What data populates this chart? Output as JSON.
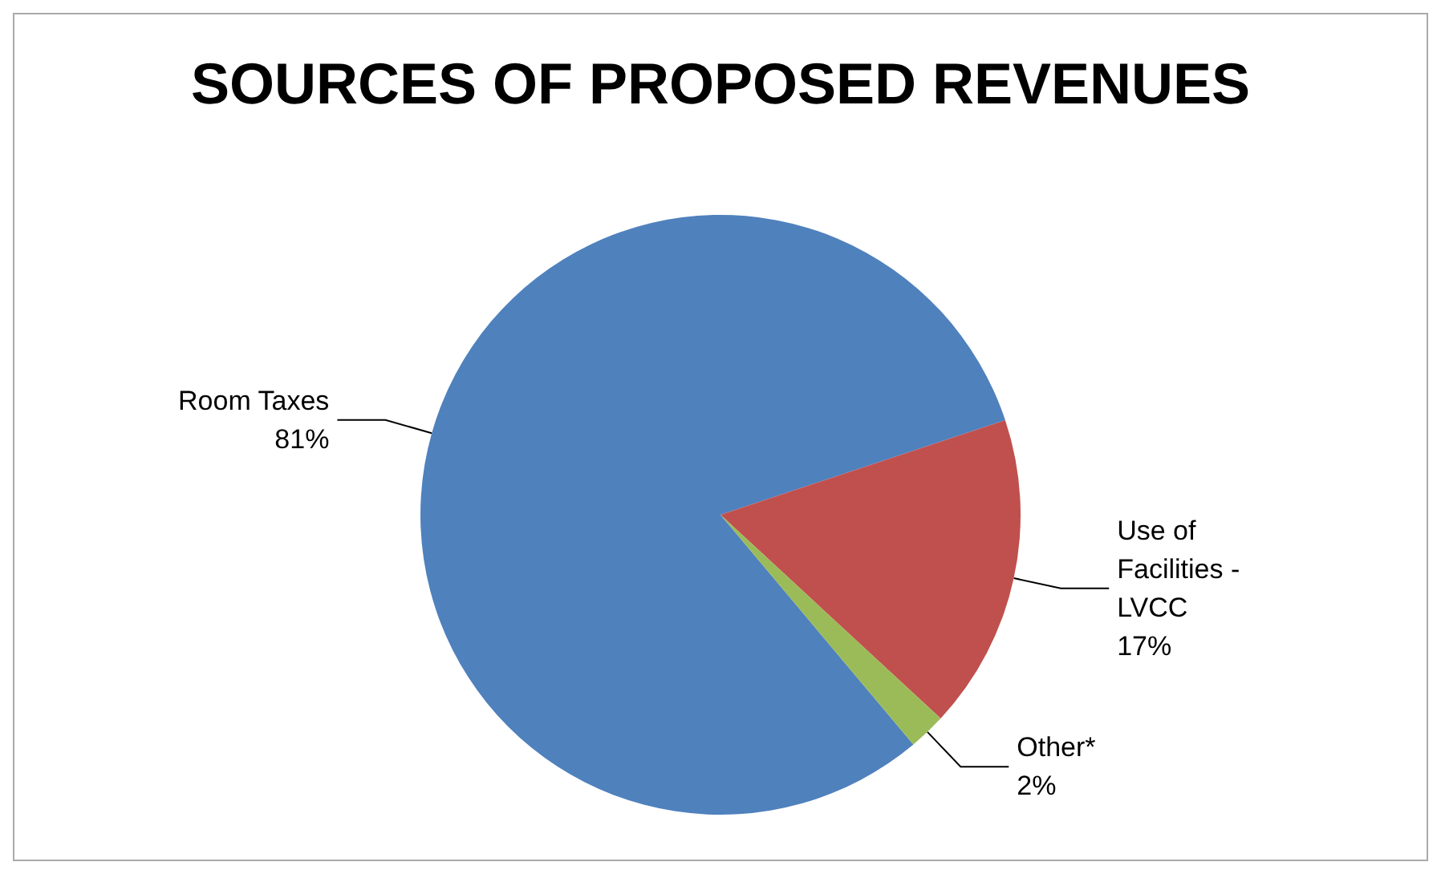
{
  "chart_data": {
    "type": "pie",
    "title": "SOURCES OF PROPOSED REVENUES",
    "categories": [
      "Room Taxes",
      "Use of Facilities - LVCC",
      "Other*"
    ],
    "values": [
      81,
      17,
      2
    ],
    "value_labels": [
      "81%",
      "17%",
      "2%"
    ],
    "colors": [
      "#4f81bd",
      "#c0504d",
      "#9bbb59"
    ],
    "legend": false
  }
}
